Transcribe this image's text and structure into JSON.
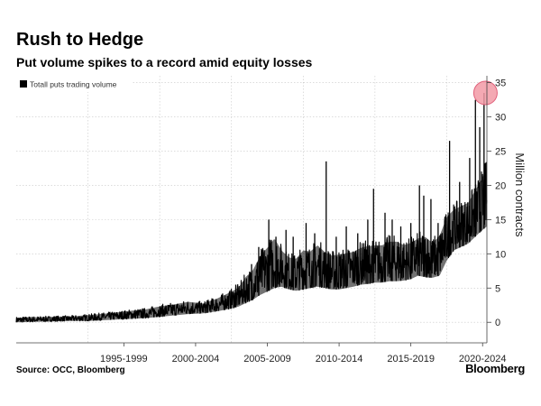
{
  "header": {
    "title": "Rush to Hedge",
    "subtitle": "Put volume spikes to a record amid equity losses"
  },
  "footer": {
    "source": "Source: OCC, Bloomberg",
    "brand": "Bloomberg"
  },
  "colors": {
    "series": "#000000",
    "grid": "#c8c8c8",
    "highlight_fill": "#f29aa6",
    "highlight_stroke": "#e0607a"
  },
  "chart_data": {
    "type": "line",
    "title": "Rush to Hedge",
    "subtitle": "Put volume spikes to a record amid equity losses",
    "xlabel": "",
    "ylabel": "Million contracts",
    "ylim": [
      -3,
      36
    ],
    "yticks": [
      0,
      5,
      10,
      15,
      20,
      25,
      30,
      35
    ],
    "xtick_labels": [
      "1995-1999",
      "2000-2004",
      "2005-2009",
      "2010-2014",
      "2015-2019",
      "2020-2024"
    ],
    "xlim": [
      1990.0,
      2022.8
    ],
    "grid": true,
    "y_axis_side": "right",
    "legend_position": "top-left",
    "series": [
      {
        "name": "Totall puts trading volume",
        "color": "#000000",
        "x": [
          1990.0,
          1992.0,
          1994.0,
          1995.0,
          1996.0,
          1997.0,
          1998.0,
          1999.0,
          2000.0,
          2001.0,
          2002.0,
          2003.0,
          2004.0,
          2005.0,
          2005.5,
          2006.0,
          2006.5,
          2007.0,
          2007.5,
          2008.0,
          2008.5,
          2009.0,
          2009.5,
          2010.0,
          2010.5,
          2011.0,
          2011.5,
          2012.0,
          2012.5,
          2013.0,
          2013.5,
          2014.0,
          2014.5,
          2015.0,
          2015.5,
          2016.0,
          2016.5,
          2017.0,
          2017.5,
          2018.0,
          2018.5,
          2019.0,
          2019.5,
          2020.0,
          2020.5,
          2021.0,
          2021.5,
          2022.0,
          2022.5,
          2022.8
        ],
        "low": [
          0.0,
          0.1,
          0.2,
          0.2,
          0.3,
          0.4,
          0.5,
          0.6,
          0.8,
          1.0,
          1.2,
          1.3,
          1.6,
          2.0,
          2.3,
          2.8,
          3.3,
          4.0,
          4.5,
          5.0,
          5.2,
          4.8,
          4.6,
          4.8,
          5.0,
          5.2,
          5.0,
          4.8,
          4.8,
          5.0,
          5.2,
          5.5,
          5.6,
          5.8,
          5.8,
          6.0,
          6.0,
          6.1,
          6.3,
          6.8,
          6.6,
          6.5,
          6.8,
          9.0,
          10.5,
          11.0,
          11.5,
          12.5,
          13.5,
          14.0
        ],
        "high": [
          0.8,
          0.9,
          1.0,
          1.2,
          1.4,
          1.6,
          1.9,
          2.1,
          2.6,
          2.9,
          3.3,
          3.0,
          3.8,
          4.9,
          5.6,
          7.3,
          8.4,
          10.7,
          12.0,
          13.5,
          11.4,
          10.3,
          10.1,
          11.5,
          11.3,
          12.3,
          11.2,
          10.6,
          10.8,
          11.0,
          11.2,
          11.8,
          12.1,
          12.2,
          12.2,
          12.8,
          12.8,
          12.2,
          12.5,
          13.2,
          13.5,
          12.5,
          13.6,
          16.5,
          17.5,
          18.0,
          18.5,
          20.5,
          22.5,
          24.0
        ],
        "spikes": [
          {
            "x": 2003.3,
            "y": 3.2
          },
          {
            "x": 2005.3,
            "y": 5.5
          },
          {
            "x": 2006.4,
            "y": 8.5
          },
          {
            "x": 2006.9,
            "y": 11.0
          },
          {
            "x": 2007.6,
            "y": 15.0
          },
          {
            "x": 2008.1,
            "y": 12.5
          },
          {
            "x": 2008.8,
            "y": 13.5
          },
          {
            "x": 2009.3,
            "y": 12.5
          },
          {
            "x": 2010.2,
            "y": 14.5
          },
          {
            "x": 2010.8,
            "y": 13.0
          },
          {
            "x": 2011.6,
            "y": 23.5
          },
          {
            "x": 2012.3,
            "y": 12.5
          },
          {
            "x": 2013.0,
            "y": 14.0
          },
          {
            "x": 2013.8,
            "y": 13.0
          },
          {
            "x": 2014.5,
            "y": 15.0
          },
          {
            "x": 2014.9,
            "y": 19.5
          },
          {
            "x": 2015.7,
            "y": 16.0
          },
          {
            "x": 2016.2,
            "y": 15.0
          },
          {
            "x": 2016.8,
            "y": 14.0
          },
          {
            "x": 2017.5,
            "y": 14.5
          },
          {
            "x": 2018.1,
            "y": 20.0
          },
          {
            "x": 2018.4,
            "y": 18.5
          },
          {
            "x": 2018.9,
            "y": 18.0
          },
          {
            "x": 2019.4,
            "y": 14.5
          },
          {
            "x": 2020.2,
            "y": 26.5
          },
          {
            "x": 2020.9,
            "y": 20.5
          },
          {
            "x": 2021.6,
            "y": 24.0
          },
          {
            "x": 2022.0,
            "y": 32.5
          },
          {
            "x": 2022.3,
            "y": 28.5
          },
          {
            "x": 2022.6,
            "y": 33.5
          }
        ],
        "highlight": {
          "x": 2022.7,
          "y": 33.5
        }
      }
    ]
  }
}
